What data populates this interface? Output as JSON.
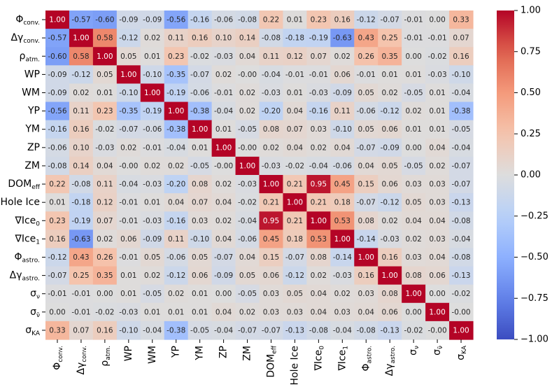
{
  "chart_data": {
    "type": "heatmap",
    "title": "",
    "labels": [
      "Φconv.",
      "Δγconv.",
      "ρatm.",
      "WP",
      "WM",
      "YP",
      "YM",
      "ZP",
      "ZM",
      "DOMeff",
      "Hole Ice",
      "∇Ice0",
      "∇Ice1",
      "Φastro.",
      "Δγastro.",
      "σν",
      "σν̄",
      "σKA"
    ],
    "label_parts": [
      {
        "main": "Φ",
        "sub": "conv."
      },
      {
        "main": "Δγ",
        "sub": "conv."
      },
      {
        "main": "ρ",
        "sub": "atm."
      },
      {
        "main": "WP",
        "sub": ""
      },
      {
        "main": "WM",
        "sub": ""
      },
      {
        "main": "YP",
        "sub": ""
      },
      {
        "main": "YM",
        "sub": ""
      },
      {
        "main": "ZP",
        "sub": ""
      },
      {
        "main": "ZM",
        "sub": ""
      },
      {
        "main": "DOM",
        "sub": "eff"
      },
      {
        "main": "Hole Ice",
        "sub": ""
      },
      {
        "main": "∇Ice",
        "sub": "0"
      },
      {
        "main": "∇Ice",
        "sub": "1"
      },
      {
        "main": "Φ",
        "sub": "astro."
      },
      {
        "main": "Δγ",
        "sub": "astro."
      },
      {
        "main": "σ",
        "sub": "ν"
      },
      {
        "main": "σ",
        "sub": "ν̄"
      },
      {
        "main": "σ",
        "sub": "KA"
      }
    ],
    "matrix": [
      [
        1.0,
        -0.57,
        -0.6,
        -0.09,
        -0.09,
        -0.56,
        -0.16,
        -0.06,
        -0.08,
        0.22,
        0.01,
        0.23,
        0.16,
        -0.12,
        -0.07,
        -0.01,
        0.0,
        0.33
      ],
      [
        -0.57,
        1.0,
        0.58,
        -0.12,
        0.02,
        0.11,
        0.16,
        0.1,
        0.14,
        -0.08,
        -0.18,
        -0.19,
        -0.63,
        0.43,
        0.25,
        -0.01,
        -0.01,
        0.07
      ],
      [
        -0.6,
        0.58,
        1.0,
        0.05,
        0.01,
        0.23,
        -0.02,
        -0.03,
        0.04,
        0.11,
        0.12,
        0.07,
        0.02,
        0.26,
        0.35,
        0.0,
        -0.02,
        0.16
      ],
      [
        -0.09,
        -0.12,
        0.05,
        1.0,
        -0.1,
        -0.35,
        -0.07,
        0.02,
        -0.0,
        -0.04,
        -0.01,
        -0.01,
        0.06,
        -0.01,
        0.01,
        0.01,
        -0.03,
        -0.1
      ],
      [
        -0.09,
        0.02,
        0.01,
        -0.1,
        1.0,
        -0.19,
        -0.06,
        -0.01,
        0.02,
        -0.03,
        0.01,
        -0.03,
        -0.09,
        0.05,
        0.02,
        -0.05,
        0.01,
        -0.04
      ],
      [
        -0.56,
        0.11,
        0.23,
        -0.35,
        -0.19,
        1.0,
        -0.38,
        -0.04,
        0.02,
        -0.2,
        0.04,
        -0.16,
        0.11,
        -0.06,
        -0.12,
        0.02,
        0.01,
        -0.38
      ],
      [
        -0.16,
        0.16,
        -0.02,
        -0.07,
        -0.06,
        -0.38,
        1.0,
        0.01,
        -0.05,
        0.08,
        0.07,
        0.03,
        -0.1,
        0.05,
        0.06,
        0.01,
        0.01,
        -0.05
      ],
      [
        -0.06,
        0.1,
        -0.03,
        0.02,
        -0.01,
        -0.04,
        0.01,
        1.0,
        -0.0,
        0.02,
        0.04,
        0.02,
        0.04,
        -0.07,
        -0.09,
        0.0,
        0.04,
        -0.04
      ],
      [
        -0.08,
        0.14,
        0.04,
        -0.0,
        0.02,
        0.02,
        -0.05,
        -0.0,
        1.0,
        -0.03,
        -0.02,
        -0.04,
        -0.06,
        0.04,
        0.05,
        -0.05,
        0.02,
        -0.07
      ],
      [
        0.22,
        -0.08,
        0.11,
        -0.04,
        -0.03,
        -0.2,
        0.08,
        0.02,
        -0.03,
        1.0,
        0.21,
        0.95,
        0.45,
        0.15,
        0.06,
        0.03,
        0.03,
        -0.07
      ],
      [
        0.01,
        -0.18,
        0.12,
        -0.01,
        0.01,
        0.04,
        0.07,
        0.04,
        -0.02,
        0.21,
        1.0,
        0.21,
        0.18,
        -0.07,
        -0.12,
        0.05,
        0.03,
        -0.13
      ],
      [
        0.23,
        -0.19,
        0.07,
        -0.01,
        -0.03,
        -0.16,
        0.03,
        0.02,
        -0.04,
        0.95,
        0.21,
        1.0,
        0.53,
        0.08,
        0.02,
        0.04,
        0.04,
        -0.08
      ],
      [
        0.16,
        -0.63,
        0.02,
        0.06,
        -0.09,
        0.11,
        -0.1,
        0.04,
        -0.06,
        0.45,
        0.18,
        0.53,
        1.0,
        -0.14,
        -0.03,
        0.02,
        0.03,
        -0.04
      ],
      [
        -0.12,
        0.43,
        0.26,
        -0.01,
        0.05,
        -0.06,
        0.05,
        -0.07,
        0.04,
        0.15,
        -0.07,
        0.08,
        -0.14,
        1.0,
        0.16,
        0.03,
        0.04,
        -0.08
      ],
      [
        -0.07,
        0.25,
        0.35,
        0.01,
        0.02,
        -0.12,
        0.06,
        -0.09,
        0.05,
        0.06,
        -0.12,
        0.02,
        -0.03,
        0.16,
        1.0,
        0.08,
        0.06,
        -0.13
      ],
      [
        -0.01,
        -0.01,
        0.0,
        0.01,
        -0.05,
        0.02,
        0.01,
        0.0,
        -0.05,
        0.03,
        0.05,
        0.04,
        0.02,
        0.03,
        0.08,
        1.0,
        0.0,
        -0.02
      ],
      [
        0.0,
        -0.01,
        -0.02,
        -0.03,
        0.01,
        0.01,
        0.01,
        0.04,
        0.02,
        0.03,
        0.03,
        0.04,
        0.03,
        0.04,
        0.06,
        0.0,
        1.0,
        -0.0
      ],
      [
        0.33,
        0.07,
        0.16,
        -0.1,
        -0.04,
        -0.38,
        -0.05,
        -0.04,
        -0.07,
        -0.07,
        -0.13,
        -0.08,
        -0.04,
        -0.08,
        -0.13,
        -0.02,
        -0.0,
        1.0
      ]
    ],
    "colorbar": {
      "range": [
        -1.0,
        1.0
      ],
      "ticks": [
        -1.0,
        -0.75,
        -0.5,
        -0.25,
        0.0,
        0.25,
        0.5,
        0.75,
        1.0
      ],
      "tick_labels": [
        "−1.00",
        "−0.75",
        "−0.50",
        "−0.25",
        "0.00",
        "0.25",
        "0.50",
        "0.75",
        "1.00"
      ],
      "colormap": "coolwarm"
    },
    "colors": {
      "low": "#3b4cc0",
      "mid": "#dddddd",
      "high": "#b40426"
    }
  }
}
